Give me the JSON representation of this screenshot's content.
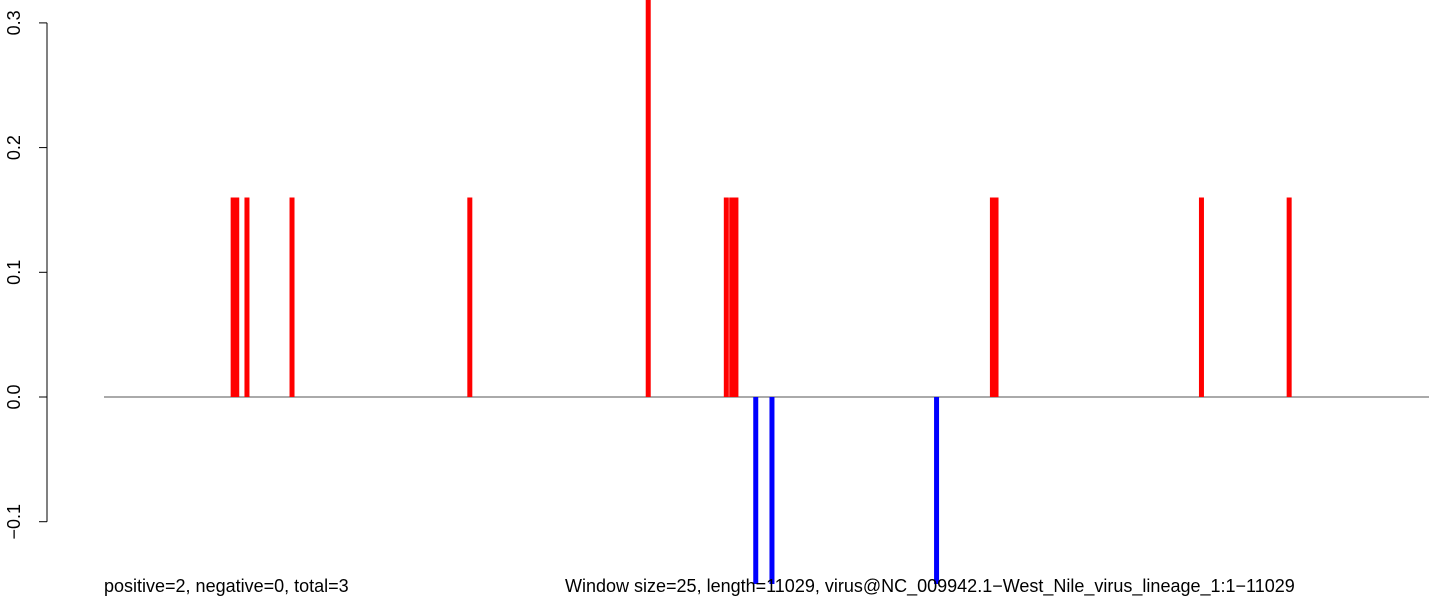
{
  "chart_data": {
    "type": "bar",
    "x_range": [
      0,
      11029
    ],
    "ylim": [
      -0.15,
      0.32
    ],
    "yticks": [
      -0.1,
      0.0,
      0.1,
      0.2,
      0.3
    ],
    "ytick_labels": [
      "-0.1",
      "0.0",
      "0.1",
      "0.2",
      "0.3"
    ],
    "positive_color": "#ff0000",
    "negative_color": "#0000ff",
    "baseline_color": "#555555",
    "bars": [
      {
        "x": 1075,
        "y": 0.16
      },
      {
        "x": 1105,
        "y": 0.16
      },
      {
        "x": 1190,
        "y": 0.16
      },
      {
        "x": 1565,
        "y": 0.16
      },
      {
        "x": 3045,
        "y": 0.16
      },
      {
        "x": 4530,
        "y": 0.32
      },
      {
        "x": 5180,
        "y": 0.16
      },
      {
        "x": 5225,
        "y": 0.16
      },
      {
        "x": 5260,
        "y": 0.16
      },
      {
        "x": 5425,
        "y": -0.15
      },
      {
        "x": 5560,
        "y": -0.15
      },
      {
        "x": 6930,
        "y": -0.15
      },
      {
        "x": 7395,
        "y": 0.16
      },
      {
        "x": 7425,
        "y": 0.16
      },
      {
        "x": 9135,
        "y": 0.16
      },
      {
        "x": 9865,
        "y": 0.16
      }
    ]
  },
  "footer": {
    "left": "positive=2, negative=0, total=3",
    "right": "Window size=25, length=11029, virus@NC_009942.1−West_Nile_virus_lineage_1:1−11029"
  }
}
